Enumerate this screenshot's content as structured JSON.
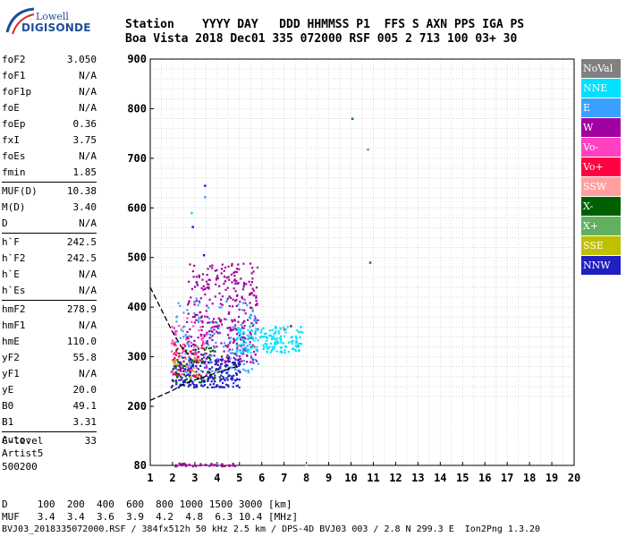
{
  "logo": {
    "line1": "Lowell",
    "line2": "DIGISONDE"
  },
  "header": {
    "row1": "Station    YYYY DAY   DDD HHMMSS P1  FFS S AXN PPS IGA PS",
    "row2": "Boa Vista 2018 Dec01 335 072000 RSF 005 2 713 100 03+ 30"
  },
  "params": [
    {
      "label": "foF2",
      "value": "3.050"
    },
    {
      "label": "foF1",
      "value": "N/A"
    },
    {
      "label": "foF1p",
      "value": "N/A"
    },
    {
      "label": "foE",
      "value": "N/A"
    },
    {
      "label": "foEp",
      "value": "0.36"
    },
    {
      "label": "fxI",
      "value": "3.75"
    },
    {
      "label": "foEs",
      "value": "N/A"
    },
    {
      "label": "fmin",
      "value": "1.85"
    },
    {
      "label": "MUF(D)",
      "value": "10.38"
    },
    {
      "label": "M(D)",
      "value": "3.40"
    },
    {
      "label": "D",
      "value": "N/A"
    },
    {
      "label": "h`F",
      "value": "242.5"
    },
    {
      "label": "h`F2",
      "value": "242.5"
    },
    {
      "label": "h`E",
      "value": "N/A"
    },
    {
      "label": "h`Es",
      "value": "N/A"
    },
    {
      "label": "hmF2",
      "value": "278.9"
    },
    {
      "label": "hmF1",
      "value": "N/A"
    },
    {
      "label": "hmE",
      "value": "110.0"
    },
    {
      "label": "yF2",
      "value": "55.8"
    },
    {
      "label": "yF1",
      "value": "N/A"
    },
    {
      "label": "yE",
      "value": "20.0"
    },
    {
      "label": "B0",
      "value": "49.1"
    },
    {
      "label": "B1",
      "value": "3.31"
    },
    {
      "label": "C-level",
      "value": "33"
    }
  ],
  "auto": {
    "line1": "Auto:",
    "line2": "Artist5",
    "line3": "500200"
  },
  "legend": [
    {
      "label": "NoVal",
      "color": "#808080"
    },
    {
      "label": "NNE",
      "color": "#00e0ff"
    },
    {
      "label": "E",
      "color": "#3aa0ff"
    },
    {
      "label": "W",
      "color": "#a000a0"
    },
    {
      "label": "Vo-",
      "color": "#ff40c0"
    },
    {
      "label": "Vo+",
      "color": "#ff0040"
    },
    {
      "label": "SSW",
      "color": "#ffa0a0"
    },
    {
      "label": "X-",
      "color": "#006000"
    },
    {
      "label": "X+",
      "color": "#60b060"
    },
    {
      "label": "SSE",
      "color": "#c0c000"
    },
    {
      "label": "NNW",
      "color": "#2020c0"
    }
  ],
  "chart_data": {
    "type": "scatter",
    "xlim": [
      1,
      20
    ],
    "ylim": [
      80,
      900
    ],
    "x_ticks": [
      "1",
      "2",
      "3",
      "4",
      "5",
      "6",
      "7",
      "8",
      "9",
      "10",
      "11",
      "12",
      "13",
      "14",
      "15",
      "16",
      "17",
      "18",
      "19",
      "20"
    ],
    "y_ticks": [
      "900",
      "800",
      "700",
      "600",
      "500",
      "400",
      "300",
      "200",
      "80"
    ],
    "y_tick_values": [
      900,
      800,
      700,
      600,
      500,
      400,
      300,
      200,
      80
    ],
    "grid": true,
    "clusters": [
      {
        "series": "W",
        "color": "#a000a0",
        "xmin": 2.6,
        "xmax": 5.8,
        "ymin": 290,
        "ymax": 490,
        "n": 360
      },
      {
        "series": "NNE",
        "color": "#00e0ff",
        "xmin": 4.8,
        "xmax": 7.8,
        "ymin": 310,
        "ymax": 365,
        "n": 180
      },
      {
        "series": "E",
        "color": "#3aa0ff",
        "xmin": 2.0,
        "xmax": 5.8,
        "ymin": 270,
        "ymax": 420,
        "n": 150
      },
      {
        "series": "NNW",
        "color": "#2020c0",
        "xmin": 1.9,
        "xmax": 5.0,
        "ymin": 240,
        "ymax": 300,
        "n": 240
      },
      {
        "series": "Vo-",
        "color": "#ff40c0",
        "xmin": 1.9,
        "xmax": 3.5,
        "ymin": 260,
        "ymax": 380,
        "n": 70
      },
      {
        "series": "Vo+",
        "color": "#ff0040",
        "xmin": 1.9,
        "xmax": 3.3,
        "ymin": 260,
        "ymax": 340,
        "n": 40
      },
      {
        "series": "X-",
        "color": "#006000",
        "xmin": 2.0,
        "xmax": 4.2,
        "ymin": 250,
        "ymax": 320,
        "n": 50
      },
      {
        "series": "SSE",
        "color": "#c0c000",
        "xmin": 2.0,
        "xmax": 3.2,
        "ymin": 260,
        "ymax": 300,
        "n": 15
      },
      {
        "series": "W",
        "color": "#a000a0",
        "xmin": 1.9,
        "xmax": 4.8,
        "ymin": 80,
        "ymax": 86,
        "n": 40
      }
    ],
    "isolated_points": [
      {
        "x": 10.05,
        "y": 780,
        "color": "#008000"
      },
      {
        "x": 10.75,
        "y": 718,
        "color": "#60b060"
      },
      {
        "x": 10.85,
        "y": 490,
        "color": "#008000"
      },
      {
        "x": 3.45,
        "y": 645,
        "color": "#2020c0"
      },
      {
        "x": 2.85,
        "y": 590,
        "color": "#00e0ff"
      },
      {
        "x": 3.45,
        "y": 622,
        "color": "#3aa0ff"
      },
      {
        "x": 2.9,
        "y": 562,
        "color": "#2020c0"
      },
      {
        "x": 3.4,
        "y": 505,
        "color": "#2020c0"
      },
      {
        "x": 7.3,
        "y": 362,
        "color": "#404040"
      },
      {
        "x": 7.0,
        "y": 355,
        "color": "#808080"
      },
      {
        "x": 8.0,
        "y": 82,
        "color": "#c0c0c0"
      }
    ],
    "trace_upper": [
      [
        1.0,
        440
      ],
      [
        1.5,
        395
      ],
      [
        2.0,
        350
      ],
      [
        2.4,
        320
      ],
      [
        2.8,
        300
      ]
    ],
    "trace_lower": [
      [
        1.0,
        212
      ],
      [
        2.0,
        232
      ],
      [
        2.5,
        245
      ],
      [
        3.0,
        253
      ],
      [
        4.0,
        268
      ],
      [
        5.0,
        282
      ]
    ]
  },
  "footer": {
    "line1": "D     100  200  400  600  800 1000 1500 3000 [km]",
    "line2": "MUF   3.4  3.4  3.6  3.9  4.2  4.8  6.3 10.4 [MHz]"
  },
  "filename": "BVJ03_2018335072000.RSF / 384fx512h 50 kHz 2.5 km / DPS-4D BVJ03 003 / 2.8 N 299.3 E  Ion2Png 1.3.20"
}
